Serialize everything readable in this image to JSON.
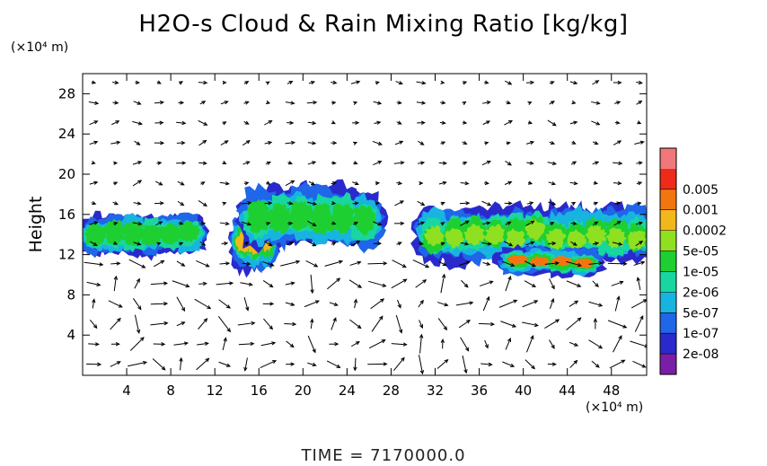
{
  "header": {
    "title": "H2O-s Cloud & Rain Mixing Ratio [kg/kg]",
    "y_unit": "(×10⁴ m)",
    "x_unit": "(×10⁴ m)",
    "ylabel": "Height",
    "time": "TIME  =  7170000.0"
  },
  "chart_data": {
    "type": "heatmap",
    "title": "H2O-s Cloud & Rain Mixing Ratio [kg/kg]",
    "ylabel": "Height",
    "xlabel": "",
    "x_unit": "(×10⁴ m)",
    "y_unit": "(×10⁴ m)",
    "xlim": [
      0,
      51.2
    ],
    "ylim": [
      0,
      30
    ],
    "x_ticks": [
      4,
      8,
      12,
      16,
      20,
      24,
      28,
      32,
      36,
      40,
      44,
      48
    ],
    "y_ticks": [
      4,
      8,
      12,
      16,
      20,
      24,
      28
    ],
    "grid": false,
    "overlay": "wind vector arrows",
    "colorbar": {
      "levels": [
        "2e-08",
        "1e-07",
        "5e-07",
        "2e-06",
        "1e-05",
        "5e-05",
        "0.0002",
        "0.001",
        "0.005"
      ],
      "colors": [
        "#7a1ea8",
        "#2a2acc",
        "#1f66e8",
        "#18b4e0",
        "#19d6a0",
        "#1ecf32",
        "#8fe021",
        "#f0b81b",
        "#f2760f",
        "#ee2a1a",
        "#f0787a"
      ]
    },
    "regions": [
      {
        "x": [
          0.3,
          10.5
        ],
        "y": [
          11.8,
          16.2
        ],
        "level": "1e-05"
      },
      {
        "x": [
          14,
          17.2
        ],
        "y": [
          10.2,
          16.4
        ],
        "level": "0.0002"
      },
      {
        "x": [
          15,
          26.5
        ],
        "y": [
          12.5,
          19.0
        ],
        "level": "1e-05"
      },
      {
        "x": [
          31,
          51.2
        ],
        "y": [
          11,
          17
        ],
        "level": "5e-05"
      },
      {
        "x": [
          38.5,
          46.5
        ],
        "y": [
          9.8,
          12.8
        ],
        "level": "0.001"
      }
    ],
    "time": 7170000.0
  }
}
